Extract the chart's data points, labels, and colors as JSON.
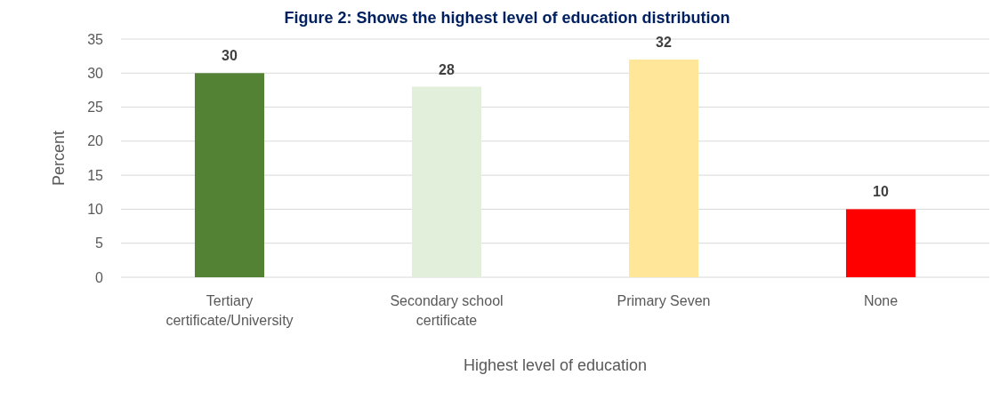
{
  "chart_data": {
    "type": "bar",
    "title": "Figure 2: Shows the highest level of education distribution",
    "categories": [
      "Tertiary certificate/University",
      "Secondary school certificate",
      "Primary Seven",
      "None"
    ],
    "values": [
      30,
      28,
      32,
      10
    ],
    "colors": [
      "#548235",
      "#e2efda",
      "#ffe699",
      "#ff0000"
    ],
    "ylim": [
      0,
      35
    ],
    "yticks": [
      0,
      5,
      10,
      15,
      20,
      25,
      30,
      35
    ],
    "grid": "y",
    "data_labels": true,
    "xlabel": "Highest level of education",
    "ylabel": "Percent"
  }
}
